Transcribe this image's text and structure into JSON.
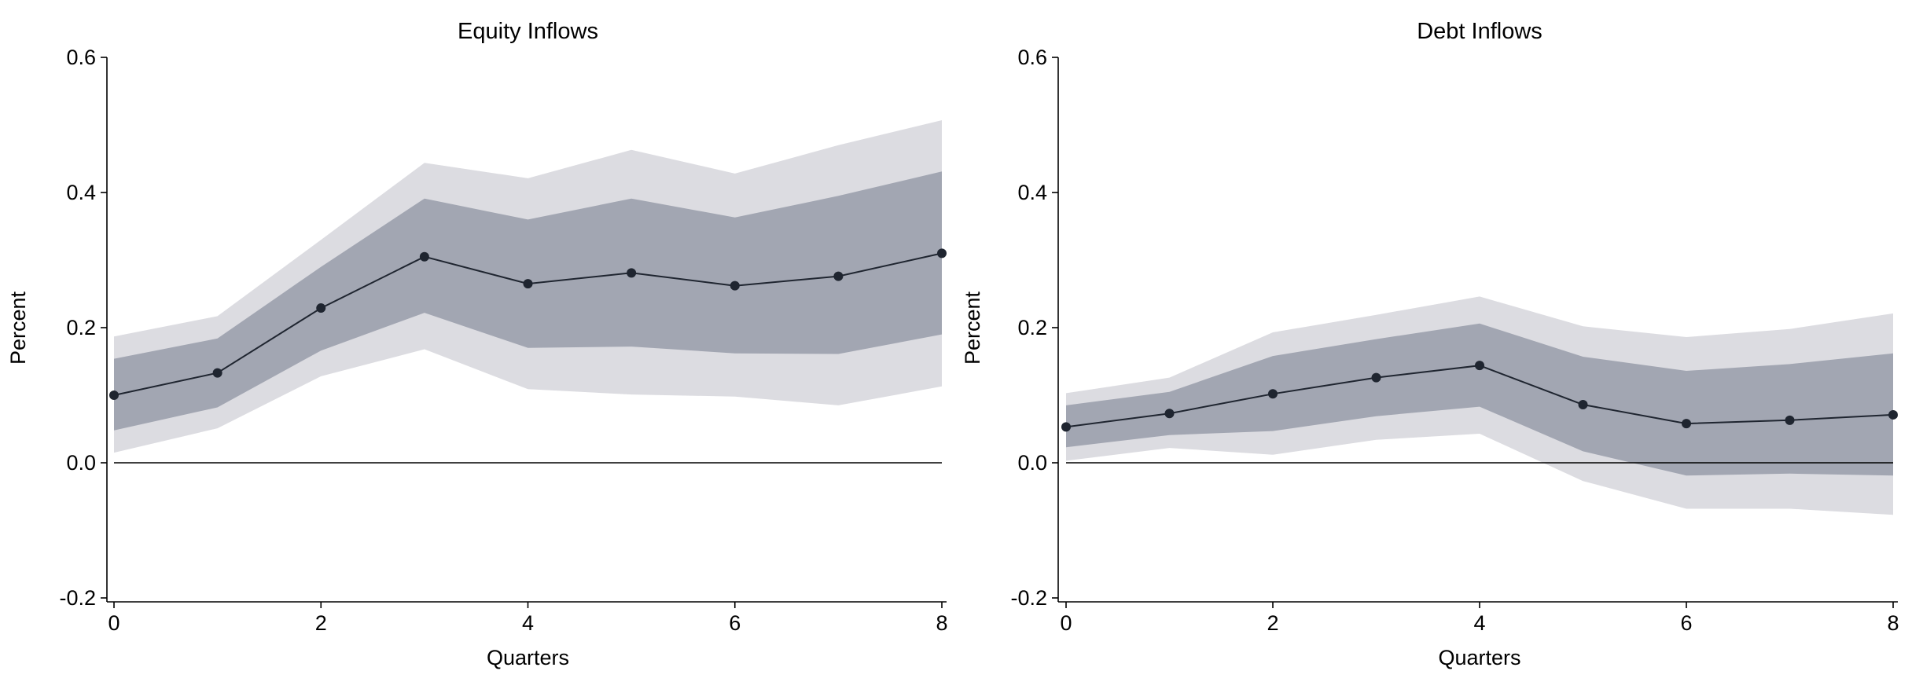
{
  "chart_data": [
    {
      "type": "line",
      "title": "Equity Inflows",
      "xlabel": "Quarters",
      "ylabel": "Percent",
      "x": [
        0,
        1,
        2,
        3,
        4,
        5,
        6,
        7,
        8
      ],
      "xlim": [
        0,
        8
      ],
      "ylim": [
        -0.2,
        0.6
      ],
      "xticks": [
        "0",
        "2",
        "4",
        "6",
        "8"
      ],
      "yticks": [
        "-0.2",
        "0.0",
        "0.2",
        "0.4",
        "0.6"
      ],
      "series": [
        {
          "values": [
            0.1,
            0.133,
            0.229,
            0.305,
            0.265,
            0.281,
            0.262,
            0.276,
            0.31
          ]
        }
      ],
      "bands": [
        {
          "lower": [
            0.015,
            0.051,
            0.128,
            0.168,
            0.109,
            0.101,
            0.098,
            0.085,
            0.113
          ],
          "upper": [
            0.187,
            0.217,
            0.33,
            0.444,
            0.421,
            0.463,
            0.428,
            0.47,
            0.507
          ]
        },
        {
          "lower": [
            0.048,
            0.082,
            0.166,
            0.222,
            0.17,
            0.172,
            0.162,
            0.161,
            0.19
          ],
          "upper": [
            0.154,
            0.184,
            0.29,
            0.391,
            0.36,
            0.391,
            0.363,
            0.395,
            0.431
          ]
        }
      ],
      "zero_line": 0,
      "grid": false,
      "colors": {
        "outer_band": "#dcdce1",
        "inner_band": "#a2a6b2",
        "line": "#1f2530",
        "zero": "#000000"
      }
    },
    {
      "type": "line",
      "title": "Debt Inflows",
      "xlabel": "Quarters",
      "ylabel": "Percent",
      "x": [
        0,
        1,
        2,
        3,
        4,
        5,
        6,
        7,
        8
      ],
      "xlim": [
        0,
        8
      ],
      "ylim": [
        -0.2,
        0.6
      ],
      "xticks": [
        "0",
        "2",
        "4",
        "6",
        "8"
      ],
      "yticks": [
        "-0.2",
        "0.0",
        "0.2",
        "0.4",
        "0.6"
      ],
      "series": [
        {
          "values": [
            0.053,
            0.073,
            0.102,
            0.126,
            0.144,
            0.086,
            0.058,
            0.063,
            0.071
          ]
        }
      ],
      "bands": [
        {
          "lower": [
            0.003,
            0.022,
            0.012,
            0.034,
            0.043,
            -0.027,
            -0.068,
            -0.068,
            -0.077
          ],
          "upper": [
            0.103,
            0.126,
            0.193,
            0.219,
            0.246,
            0.202,
            0.186,
            0.198,
            0.221
          ]
        },
        {
          "lower": [
            0.023,
            0.041,
            0.047,
            0.069,
            0.083,
            0.017,
            -0.019,
            -0.016,
            -0.019
          ],
          "upper": [
            0.085,
            0.105,
            0.158,
            0.183,
            0.206,
            0.157,
            0.136,
            0.146,
            0.162
          ]
        }
      ],
      "zero_line": 0,
      "grid": false,
      "colors": {
        "outer_band": "#dcdce1",
        "inner_band": "#a2a6b2",
        "line": "#1f2530",
        "zero": "#000000"
      }
    }
  ]
}
